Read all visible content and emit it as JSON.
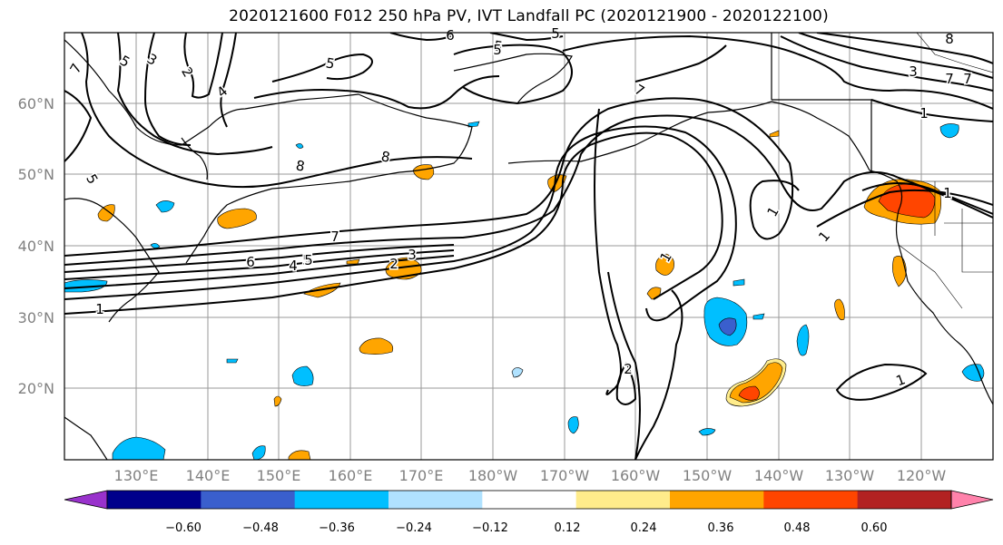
{
  "title": "2020121600 F012 250 hPa PV, IVT Landfall PC (2020121900 - 2020122100)",
  "map": {
    "lat_labels": [
      "60°N",
      "50°N",
      "40°N",
      "30°N",
      "20°N"
    ],
    "lon_labels": [
      "130°E",
      "140°E",
      "150°E",
      "160°E",
      "170°E",
      "180°W",
      "170°W",
      "160°W",
      "150°W",
      "140°W",
      "130°W",
      "120°W"
    ],
    "contour_labels": [
      "7",
      "5",
      "3",
      "2",
      "5",
      "4",
      "6",
      "5",
      "8",
      "8",
      "5",
      "5",
      "7",
      "5",
      "7",
      "6",
      "5",
      "4",
      "5",
      "2",
      "3",
      "1",
      "7",
      "1",
      "1",
      "1",
      "1",
      "2",
      "3",
      "7",
      "1",
      "8",
      "1"
    ]
  },
  "colorbar": {
    "ticks": [
      "−0.60",
      "−0.48",
      "−0.36",
      "−0.24",
      "−0.12",
      "0.12",
      "0.24",
      "0.36",
      "0.48",
      "0.60"
    ],
    "colors": [
      "#9932cc",
      "#00008b",
      "#3a5fcd",
      "#00bfff",
      "#b0e2ff",
      "#ffffff",
      "#ffec8b",
      "#ffa500",
      "#ff4500",
      "#b22222",
      "#ff82ab"
    ]
  }
}
